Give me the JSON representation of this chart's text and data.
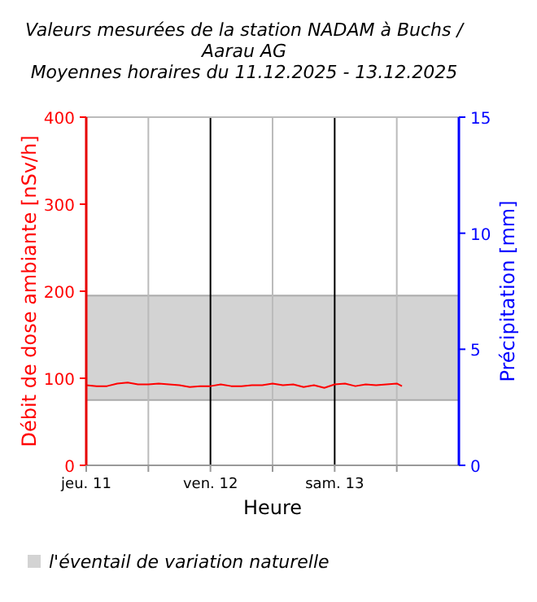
{
  "chart_data": {
    "type": "line",
    "title": "Valeurs mesurées de la station NADAM à Buchs / Aarau AG",
    "subtitle": "Moyennes horaires du 11.12.2025 - 13.12.2025",
    "xlabel": "Heure",
    "ylabel": "Débit de dose ambiante [nSv/h]",
    "y2label": "Précipitation [mm]",
    "x": [
      "2025-12-11T00:00",
      "2025-12-11T02:00",
      "2025-12-11T04:00",
      "2025-12-11T06:00",
      "2025-12-11T08:00",
      "2025-12-11T10:00",
      "2025-12-11T12:00",
      "2025-12-11T14:00",
      "2025-12-11T16:00",
      "2025-12-11T18:00",
      "2025-12-11T20:00",
      "2025-12-11T22:00",
      "2025-12-12T00:00",
      "2025-12-12T02:00",
      "2025-12-12T04:00",
      "2025-12-12T06:00",
      "2025-12-12T08:00",
      "2025-12-12T10:00",
      "2025-12-12T12:00",
      "2025-12-12T14:00",
      "2025-12-12T16:00",
      "2025-12-12T18:00",
      "2025-12-12T20:00",
      "2025-12-12T22:00",
      "2025-12-13T00:00",
      "2025-12-13T02:00",
      "2025-12-13T04:00",
      "2025-12-13T06:00",
      "2025-12-13T08:00",
      "2025-12-13T10:00",
      "2025-12-13T12:00",
      "2025-12-13T13:00"
    ],
    "series": [
      {
        "color": "#ff0000",
        "values": [
          92,
          91,
          91,
          94,
          95,
          93,
          93,
          94,
          93,
          92,
          90,
          91,
          91,
          93,
          91,
          91,
          92,
          92,
          94,
          92,
          93,
          90,
          92,
          89,
          93,
          94,
          91,
          93,
          92,
          93,
          94,
          91
        ]
      }
    ],
    "xlim": [
      "2025-12-11T00:00",
      "2025-12-14T00:00"
    ],
    "xticks": [
      {
        "value": "2025-12-11T00:00",
        "label": "jeu. 11"
      },
      {
        "value": "2025-12-11T12:00",
        "label": null
      },
      {
        "value": "2025-12-12T00:00",
        "label": "ven. 12"
      },
      {
        "value": "2025-12-12T12:00",
        "label": null
      },
      {
        "value": "2025-12-13T00:00",
        "label": "sam. 13"
      },
      {
        "value": "2025-12-13T12:00",
        "label": null
      }
    ],
    "ylim": [
      0,
      400
    ],
    "yticks": [
      0,
      100,
      200,
      300,
      400
    ],
    "y2lim": [
      0,
      15
    ],
    "y2ticks": [
      0,
      5,
      10,
      15
    ],
    "bands": [
      {
        "axis": "y",
        "from": 75,
        "to": 195,
        "label": "l'éventail de variation naturelle",
        "color": "#d3d3d3"
      }
    ],
    "grid": "x",
    "legend": "bottom",
    "marker": "none",
    "line_style": "solid"
  }
}
